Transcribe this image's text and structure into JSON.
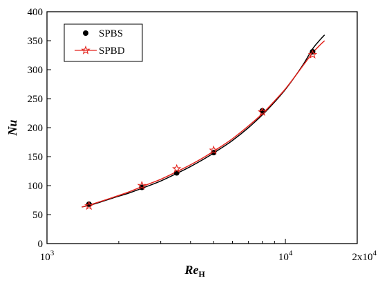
{
  "chart_data": {
    "type": "scatter",
    "title": "",
    "x_scale": "log",
    "xlim": [
      1000,
      20000
    ],
    "ylim": [
      0,
      400
    ],
    "y_ticks": [
      0,
      50,
      100,
      150,
      200,
      250,
      300,
      350,
      400
    ],
    "x_major_ticks": [
      1000,
      10000,
      20000
    ],
    "x_major_tick_labels": [
      "10",
      "10",
      "2x10"
    ],
    "x_major_tick_exponents": [
      "3",
      "4",
      "4"
    ],
    "x_minor_ticks": [
      2000,
      3000,
      4000,
      5000,
      6000,
      7000,
      8000,
      9000
    ],
    "xlabel": {
      "main": "Re",
      "sub": "H"
    },
    "ylabel": "Nu",
    "legend": {
      "position": "top-left"
    },
    "series": [
      {
        "name": "SPBS",
        "marker": "circle",
        "color": "#000000",
        "x": [
          1500,
          2500,
          3500,
          5000,
          8000,
          13000
        ],
        "y": [
          68,
          97,
          122,
          157,
          229,
          331
        ],
        "fit_x": [
          1400,
          1600,
          1900,
          2200,
          2600,
          3000,
          3500,
          4000,
          4600,
          5300,
          6000,
          7000,
          8000,
          9000,
          10000,
          11000,
          12000,
          13000,
          14000,
          14600
        ],
        "fit_y": [
          63,
          69,
          79,
          87,
          98,
          108,
          121,
          133,
          147,
          163,
          178,
          200,
          222,
          244,
          266,
          289,
          312,
          336,
          352,
          360
        ]
      },
      {
        "name": "SPBD",
        "marker": "star",
        "color": "#e3231c",
        "x": [
          1500,
          2500,
          3500,
          5000,
          8000,
          13000
        ],
        "y": [
          65,
          100,
          129,
          161,
          227,
          326
        ],
        "fit_x": [
          1400,
          1600,
          1900,
          2200,
          2600,
          3000,
          3500,
          4000,
          4600,
          5300,
          6000,
          7000,
          8000,
          9000,
          10000,
          11000,
          12000,
          13000,
          14000,
          14600
        ],
        "fit_y": [
          63,
          70,
          80,
          89,
          101,
          111,
          124,
          136,
          150,
          166,
          181,
          203,
          224,
          246,
          267,
          289,
          310,
          329,
          343,
          350
        ]
      }
    ]
  }
}
